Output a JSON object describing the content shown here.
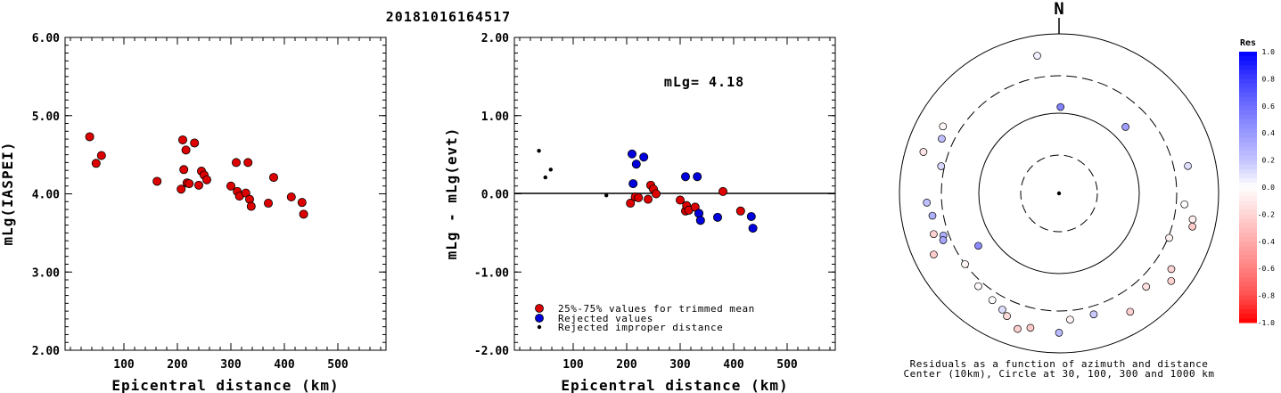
{
  "page": {
    "title": "20181016164517"
  },
  "chart_data": [
    {
      "type": "scatter",
      "xlabel": "Epicentral distance (km)",
      "ylabel": "mLg(IASPEI)",
      "xlim": [
        -10,
        590
      ],
      "ylim": [
        2.0,
        6.0
      ],
      "xticks": [
        "100",
        "200",
        "300",
        "400",
        "500"
      ],
      "yticks": [
        "2.00",
        "3.00",
        "4.00",
        "5.00",
        "6.00"
      ],
      "series": [
        {
          "color": "#dd0000",
          "x": [
            36,
            48,
            58,
            162,
            207,
            210,
            212,
            216,
            218,
            222,
            232,
            240,
            245,
            250,
            255,
            300,
            310,
            312,
            316,
            328,
            332,
            335,
            338,
            370,
            380,
            413,
            433,
            436
          ],
          "y": [
            4.73,
            4.39,
            4.49,
            4.16,
            4.06,
            4.69,
            4.31,
            4.56,
            4.14,
            4.13,
            4.65,
            4.11,
            4.29,
            4.24,
            4.18,
            4.1,
            4.4,
            4.03,
            3.97,
            4.01,
            4.4,
            3.93,
            3.84,
            3.88,
            4.21,
            3.96,
            3.89,
            3.74
          ]
        }
      ]
    },
    {
      "type": "scatter",
      "xlabel": "Epicentral distance (km)",
      "ylabel": "mLg - mLg(evt)",
      "xlim": [
        -10,
        590
      ],
      "ylim": [
        -2.0,
        2.0
      ],
      "xticks": [
        "100",
        "200",
        "300",
        "400",
        "500"
      ],
      "yticks": [
        "-2.00",
        "-1.00",
        "0.00",
        "1.00",
        "2.00"
      ],
      "annotation": "mLg= 4.18",
      "legend": [
        {
          "label": "25%-75% values for trimmed mean",
          "color": "#dd0000"
        },
        {
          "label": "Rejected values",
          "color": "#0000dd"
        },
        {
          "label": "Rejected improper distance",
          "color": "#000000"
        }
      ],
      "series": [
        {
          "color": "#dd0000",
          "x": [
            207,
            216,
            222,
            240,
            245,
            250,
            255,
            300,
            310,
            312,
            316,
            328,
            335,
            380,
            413
          ],
          "y": [
            -0.12,
            -0.04,
            -0.05,
            -0.07,
            0.11,
            0.06,
            0.0,
            -0.08,
            -0.22,
            -0.15,
            -0.21,
            -0.17,
            -0.25,
            0.03,
            -0.22
          ]
        },
        {
          "color": "#0000dd",
          "x": [
            210,
            212,
            218,
            232,
            310,
            332,
            335,
            338,
            370,
            433,
            436
          ],
          "y": [
            0.51,
            0.13,
            0.38,
            0.47,
            0.22,
            0.22,
            -0.25,
            -0.34,
            -0.3,
            -0.29,
            -0.44
          ]
        },
        {
          "color": "#000000",
          "small": true,
          "x": [
            36,
            48,
            58,
            162
          ],
          "y": [
            0.55,
            0.21,
            0.31,
            -0.02
          ]
        }
      ]
    },
    {
      "type": "polar",
      "north_label": "N",
      "caption": [
        "Residuals as a function of azimuth and distance",
        "Center (10km), Circle at 30, 100, 300 and 1000 km"
      ],
      "colorbar": {
        "title": "Res",
        "labels": [
          "1.0",
          "0.8",
          "0.6",
          "0.4",
          "0.2",
          "0.0",
          "-0.2",
          "-0.4",
          "-0.6",
          "-0.8",
          "-1.0"
        ],
        "colors": [
          "#0000ff",
          "#3d3dff",
          "#6e6eff",
          "#9a9aff",
          "#c3c3ff",
          "#ffffff",
          "#ffd4d4",
          "#ffabab",
          "#ff8080",
          "#ff5050",
          "#ff0000"
        ]
      },
      "points": [
        {
          "az": 351,
          "dist": 560,
          "res": 0.05
        },
        {
          "az": 1,
          "dist": 120,
          "res": 0.51
        },
        {
          "az": 45,
          "dist": 150,
          "res": 0.38
        },
        {
          "az": 237,
          "dist": 160,
          "res": 0.47
        },
        {
          "az": 295,
          "dist": 420,
          "res": 0.22
        },
        {
          "az": 283,
          "dist": 330,
          "res": 0.13
        },
        {
          "az": 266,
          "dist": 460,
          "res": 0.22
        },
        {
          "az": 260,
          "dist": 410,
          "res": 0.3
        },
        {
          "az": 250,
          "dist": 350,
          "res": 0.3
        },
        {
          "az": 248,
          "dist": 370,
          "res": 0.34
        },
        {
          "az": 287,
          "dist": 600,
          "res": -0.12
        },
        {
          "az": 300,
          "dist": 480,
          "res": -0.04
        },
        {
          "az": 252,
          "dist": 450,
          "res": -0.22
        },
        {
          "az": 244,
          "dist": 560,
          "res": -0.24
        },
        {
          "az": 233,
          "dist": 300,
          "res": -0.05
        },
        {
          "az": 221,
          "dist": 350,
          "res": -0.03
        },
        {
          "az": 212,
          "dist": 380,
          "res": 0.0
        },
        {
          "az": 206,
          "dist": 420,
          "res": 0.11
        },
        {
          "az": 203,
          "dist": 470,
          "res": -0.17
        },
        {
          "az": 197,
          "dist": 600,
          "res": -0.22
        },
        {
          "az": 192,
          "dist": 530,
          "res": -0.25
        },
        {
          "az": 180,
          "dist": 560,
          "res": 0.25
        },
        {
          "az": 175,
          "dist": 390,
          "res": -0.06
        },
        {
          "az": 164,
          "dist": 380,
          "res": 0.18
        },
        {
          "az": 149,
          "dist": 540,
          "res": -0.22
        },
        {
          "az": 137,
          "dist": 400,
          "res": -0.15
        },
        {
          "az": 128,
          "dist": 610,
          "res": -0.21
        },
        {
          "az": 124,
          "dist": 500,
          "res": -0.2
        },
        {
          "az": 112,
          "dist": 310,
          "res": -0.07
        },
        {
          "az": 104,
          "dist": 530,
          "res": -0.25
        },
        {
          "az": 101,
          "dist": 510,
          "res": -0.08
        },
        {
          "az": 95,
          "dist": 380,
          "res": 0.0
        },
        {
          "az": 78,
          "dist": 450,
          "res": 0.11
        }
      ]
    }
  ]
}
